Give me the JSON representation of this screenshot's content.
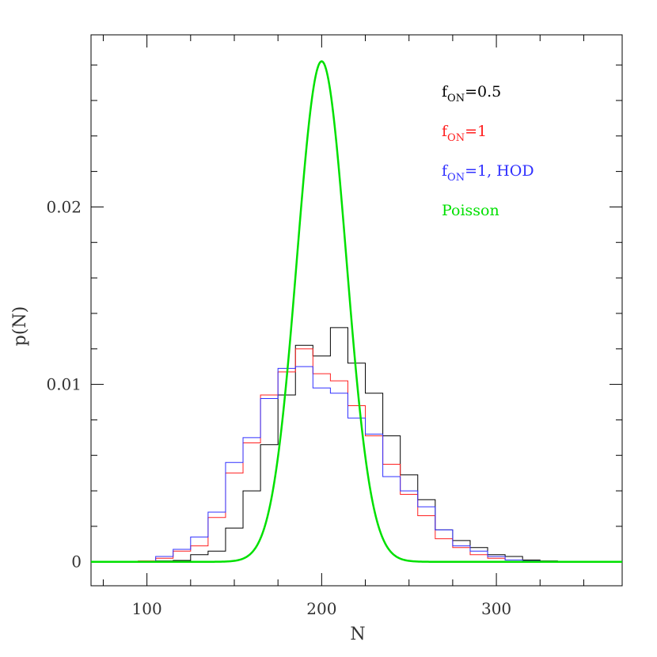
{
  "chart_data": {
    "type": "line",
    "xlabel": "N",
    "ylabel": "p(N)",
    "xlim": [
      68,
      372
    ],
    "ylim": [
      -0.00135,
      0.0297
    ],
    "x_ticks": [
      100,
      200,
      300
    ],
    "y_ticks": [
      0,
      0.01,
      0.02
    ],
    "y_tick_labels": [
      "0",
      "0.01",
      "0.02"
    ],
    "legend_position": "top-right",
    "series": [
      {
        "name": "f_ON=0.5",
        "legend_main": "f",
        "legend_sub": "ON",
        "legend_rest": "=0.5",
        "color": "#000000",
        "kind": "histogram",
        "bin_edges": [
          75,
          85,
          95,
          105,
          115,
          125,
          135,
          145,
          155,
          165,
          175,
          185,
          195,
          205,
          215,
          225,
          235,
          245,
          255,
          265,
          275,
          285,
          295,
          305,
          315,
          325,
          335,
          345,
          355,
          365
        ],
        "values": [
          0,
          0,
          3e-05,
          5e-05,
          8e-05,
          0.0004,
          0.0006,
          0.0019,
          0.004,
          0.0066,
          0.0094,
          0.0122,
          0.0116,
          0.0132,
          0.0112,
          0.0095,
          0.0071,
          0.0049,
          0.0035,
          0.0018,
          0.0012,
          0.0008,
          0.0004,
          0.0003,
          0.0001,
          5e-05,
          3e-05,
          0,
          0
        ]
      },
      {
        "name": "f_ON=1",
        "legend_main": "f",
        "legend_sub": "ON",
        "legend_rest": "=1",
        "color": "#ff2020",
        "kind": "histogram",
        "bin_edges": [
          75,
          85,
          95,
          105,
          115,
          125,
          135,
          145,
          155,
          165,
          175,
          185,
          195,
          205,
          215,
          225,
          235,
          245,
          255,
          265,
          275,
          285,
          295,
          305,
          315,
          325,
          335,
          345,
          355,
          365
        ],
        "values": [
          0,
          0,
          5e-05,
          0.0002,
          0.0006,
          0.0009,
          0.0025,
          0.005,
          0.0067,
          0.0094,
          0.0107,
          0.012,
          0.0106,
          0.0102,
          0.0088,
          0.0071,
          0.0055,
          0.0038,
          0.0026,
          0.0013,
          0.0008,
          0.0004,
          0.0002,
          0.0001,
          5e-05,
          2e-05,
          0,
          0,
          0
        ]
      },
      {
        "name": "f_ON=1, HOD",
        "legend_main": "f",
        "legend_sub": "ON",
        "legend_rest": "=1,  HOD",
        "color": "#3030ff",
        "kind": "histogram",
        "bin_edges": [
          75,
          85,
          95,
          105,
          115,
          125,
          135,
          145,
          155,
          165,
          175,
          185,
          195,
          205,
          215,
          225,
          235,
          245,
          255,
          265,
          275,
          285,
          295,
          305,
          315,
          325,
          335,
          345,
          355,
          365
        ],
        "values": [
          0,
          0,
          2e-05,
          0.0003,
          0.0007,
          0.0014,
          0.0028,
          0.0056,
          0.007,
          0.0092,
          0.0109,
          0.011,
          0.0098,
          0.0095,
          0.0081,
          0.0072,
          0.0048,
          0.004,
          0.0031,
          0.0018,
          0.0009,
          0.0006,
          0.0003,
          0.0001,
          5e-05,
          2e-05,
          0,
          0,
          0
        ]
      },
      {
        "name": "Poisson",
        "legend_main": "Poisson",
        "legend_sub": "",
        "legend_rest": "",
        "color": "#00e000",
        "kind": "curve",
        "mean": 200,
        "x_range": [
          68,
          372
        ]
      }
    ]
  }
}
